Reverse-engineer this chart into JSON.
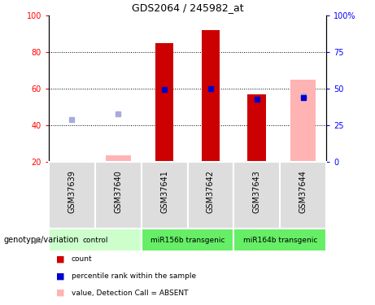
{
  "title": "GDS2064 / 245982_at",
  "samples": [
    "GSM37639",
    "GSM37640",
    "GSM37641",
    "GSM37642",
    "GSM37643",
    "GSM37644"
  ],
  "ylim_left": [
    20,
    100
  ],
  "yticks_left": [
    20,
    40,
    60,
    80,
    100
  ],
  "yticks_right": [
    0,
    25,
    50,
    75,
    100
  ],
  "ytick_labels_right": [
    "0",
    "25",
    "50",
    "75",
    "100%"
  ],
  "bar_color": "#cc0000",
  "blue_marker_color": "#0000cc",
  "pink_bar_color": "#ffb3b3",
  "lavender_marker_color": "#aaaadd",
  "bars": {
    "GSM37639": {
      "count": 20.3,
      "rank": null,
      "absent_value": null,
      "absent_rank": 43
    },
    "GSM37640": {
      "count": 20.3,
      "rank": null,
      "absent_value": 23.5,
      "absent_rank": 46
    },
    "GSM37641": {
      "count": 85,
      "rank": 59.5,
      "absent_value": null,
      "absent_rank": null
    },
    "GSM37642": {
      "count": 92,
      "rank": 60,
      "absent_value": null,
      "absent_rank": null
    },
    "GSM37643": {
      "count": 57,
      "rank": 54,
      "absent_value": null,
      "absent_rank": null
    },
    "GSM37644": {
      "count": 20.3,
      "rank": 55,
      "absent_value": 65,
      "absent_rank": 56
    }
  },
  "legend_items": [
    {
      "label": "count",
      "color": "#cc0000"
    },
    {
      "label": "percentile rank within the sample",
      "color": "#0000cc"
    },
    {
      "label": "value, Detection Call = ABSENT",
      "color": "#ffb3b3"
    },
    {
      "label": "rank, Detection Call = ABSENT",
      "color": "#aaaadd"
    }
  ],
  "groups": [
    {
      "label": "control",
      "start": 0,
      "end": 2,
      "color": "#ccffcc"
    },
    {
      "label": "miR156b transgenic",
      "start": 2,
      "end": 4,
      "color": "#66ee66"
    },
    {
      "label": "miR164b transgenic",
      "start": 4,
      "end": 6,
      "color": "#66ee66"
    }
  ],
  "sample_box_color": "#dddddd",
  "genotype_label": "genotype/variation",
  "bar_width": 0.4,
  "pink_bar_width": 0.55,
  "marker_size": 5
}
